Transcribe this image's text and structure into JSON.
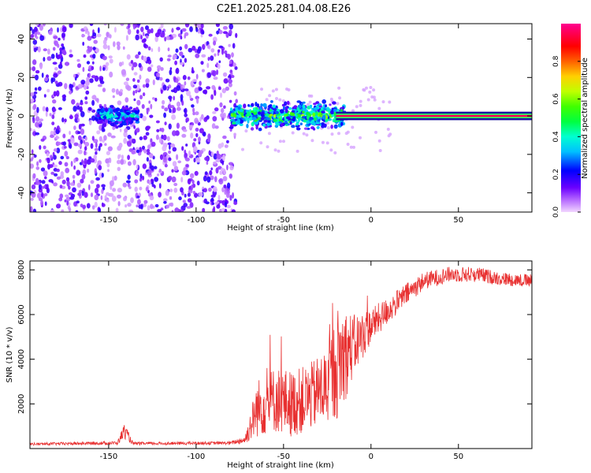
{
  "title": "C2E1.2025.281.04.08.E26",
  "chart_data": [
    {
      "type": "heatmap",
      "xlabel": "Height of straight line (km)",
      "ylabel": "Frequency (Hz)",
      "xlim": [
        -195,
        92
      ],
      "ylim": [
        -50,
        48
      ],
      "xticks": [
        "-150",
        "-100",
        "-50",
        "0",
        "50"
      ],
      "yticks": [
        "-40",
        "-20",
        "0",
        "20",
        "40"
      ],
      "colorbar": {
        "label": "Normalized spectral amplitude",
        "range": [
          0,
          1
        ],
        "ticks": [
          "0.0",
          "0.2",
          "0.4",
          "0.6",
          "0.8"
        ]
      },
      "features": [
        {
          "region": "noise",
          "x_range": [
            -195,
            -77
          ],
          "freq_range": [
            -50,
            48
          ],
          "amplitude": 0.15
        },
        {
          "region": "noise-gap",
          "x_range": [
            -152,
            -140
          ],
          "freq_range": [
            -50,
            48
          ],
          "amplitude": 0.05
        },
        {
          "region": "burst",
          "x_range": [
            -157,
            -133
          ],
          "freq_range": [
            -6,
            8
          ],
          "amplitude": 0.35
        },
        {
          "region": "burst",
          "x_range": [
            -80,
            -15
          ],
          "freq_range": [
            -10,
            8
          ],
          "amplitude": 0.5
        },
        {
          "region": "carrier",
          "x_range": [
            -20,
            92
          ],
          "freq_range": [
            -1,
            1
          ],
          "amplitude": 0.95
        }
      ]
    },
    {
      "type": "line",
      "xlabel": "Height of straight line (km)",
      "ylabel": "SNR (10 * v/v)",
      "xlim": [
        -195,
        92
      ],
      "ylim": [
        0,
        8400
      ],
      "xticks": [
        "-150",
        "-100",
        "-50",
        "0",
        "50"
      ],
      "yticks": [
        "2000",
        "4000",
        "6000",
        "8000"
      ],
      "series_color": "#e83030",
      "profile": [
        {
          "x": -195,
          "y": 200,
          "jitter": 60
        },
        {
          "x": -145,
          "y": 250,
          "jitter": 80
        },
        {
          "x": -141,
          "y": 800,
          "jitter": 350
        },
        {
          "x": -136,
          "y": 220,
          "jitter": 70
        },
        {
          "x": -80,
          "y": 250,
          "jitter": 70
        },
        {
          "x": -72,
          "y": 400,
          "jitter": 200
        },
        {
          "x": -65,
          "y": 1800,
          "jitter": 1300
        },
        {
          "x": -55,
          "y": 2200,
          "jitter": 1500
        },
        {
          "x": -45,
          "y": 2000,
          "jitter": 1500
        },
        {
          "x": -35,
          "y": 2300,
          "jitter": 1500
        },
        {
          "x": -25,
          "y": 2800,
          "jitter": 1800
        },
        {
          "x": -18,
          "y": 4000,
          "jitter": 2600
        },
        {
          "x": -10,
          "y": 4600,
          "jitter": 1400
        },
        {
          "x": 0,
          "y": 5500,
          "jitter": 800
        },
        {
          "x": 10,
          "y": 6200,
          "jitter": 600
        },
        {
          "x": 20,
          "y": 6900,
          "jitter": 500
        },
        {
          "x": 30,
          "y": 7500,
          "jitter": 400
        },
        {
          "x": 45,
          "y": 7800,
          "jitter": 350
        },
        {
          "x": 60,
          "y": 7800,
          "jitter": 350
        },
        {
          "x": 75,
          "y": 7600,
          "jitter": 300
        },
        {
          "x": 92,
          "y": 7500,
          "jitter": 300
        }
      ]
    }
  ]
}
